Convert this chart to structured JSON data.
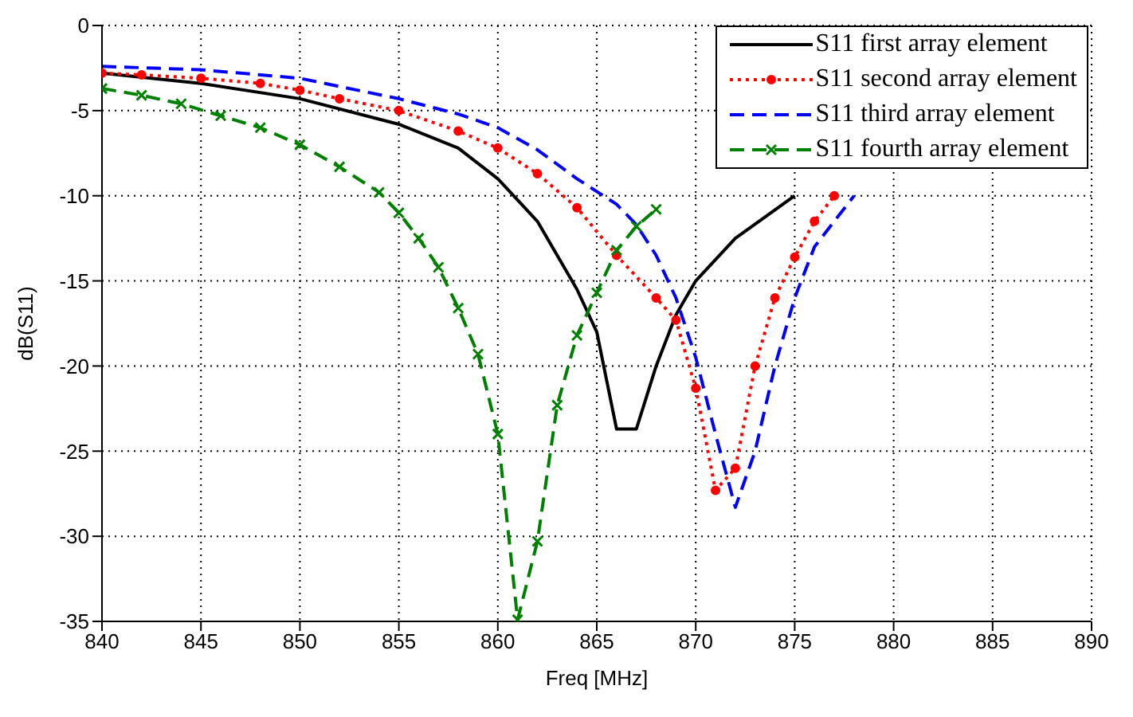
{
  "chart_data": {
    "type": "line",
    "xlabel": "Freq [MHz]",
    "ylabel": "dB(S11)",
    "xlim": [
      840,
      890
    ],
    "xticks": [
      840,
      845,
      850,
      855,
      860,
      865,
      870,
      875,
      880,
      885,
      890
    ],
    "ylim": [
      -35,
      0
    ],
    "yticks": [
      -35,
      -30,
      -25,
      -20,
      -15,
      -10,
      -5,
      0
    ],
    "grid": true,
    "legend": "top right",
    "series": [
      {
        "name": "S11 first array element",
        "color": "#000000",
        "line_style": "solid",
        "marker": "none",
        "x": [
          840,
          845,
          850,
          855,
          858,
          860,
          862,
          864,
          865,
          866,
          867,
          868,
          869,
          870,
          872,
          875
        ],
        "values": [
          -2.8,
          -3.4,
          -4.3,
          -5.8,
          -7.2,
          -9,
          -11.5,
          -15.5,
          -18,
          -23.7,
          -23.7,
          -20,
          -17,
          -15,
          -12.5,
          -10
        ]
      },
      {
        "name": "S11 second array element",
        "color": "#ff0000",
        "line_style": "dotted",
        "marker": "circle",
        "x": [
          840,
          842,
          845,
          848,
          850,
          852,
          855,
          858,
          860,
          862,
          864,
          866,
          868,
          869,
          870,
          871,
          872,
          873,
          874,
          875,
          876,
          877
        ],
        "values": [
          -2.8,
          -2.9,
          -3.1,
          -3.4,
          -3.8,
          -4.3,
          -5,
          -6.2,
          -7.2,
          -8.7,
          -10.7,
          -13.5,
          -16,
          -17.3,
          -21.3,
          -27.3,
          -26,
          -20,
          -16,
          -13.6,
          -11.5,
          -10
        ]
      },
      {
        "name": "S11 third array element",
        "color": "#0000ff",
        "line_style": "dashed",
        "marker": "none",
        "x": [
          840,
          845,
          850,
          855,
          858,
          860,
          862,
          864,
          866,
          867,
          868,
          869,
          870,
          871,
          872,
          873,
          874,
          875,
          876,
          878
        ],
        "values": [
          -2.4,
          -2.6,
          -3.1,
          -4.3,
          -5.2,
          -6,
          -7.3,
          -9,
          -10.5,
          -11.7,
          -13.5,
          -16,
          -19.5,
          -24,
          -28.3,
          -25,
          -20,
          -16,
          -13,
          -10
        ]
      },
      {
        "name": "S11 fourth array element",
        "color": "#008000",
        "line_style": "dashed",
        "marker": "cross",
        "x": [
          840,
          842,
          844,
          846,
          848,
          850,
          852,
          854,
          855,
          856,
          857,
          858,
          859,
          860,
          861,
          862,
          863,
          864,
          865,
          866,
          867,
          868
        ],
        "values": [
          -3.7,
          -4.1,
          -4.6,
          -5.3,
          -6,
          -7,
          -8.3,
          -9.8,
          -11,
          -12.5,
          -14.2,
          -16.6,
          -19.3,
          -24,
          -34.9,
          -30.3,
          -22.3,
          -18.2,
          -15.7,
          -13.2,
          -11.8,
          -10.8
        ]
      }
    ]
  }
}
